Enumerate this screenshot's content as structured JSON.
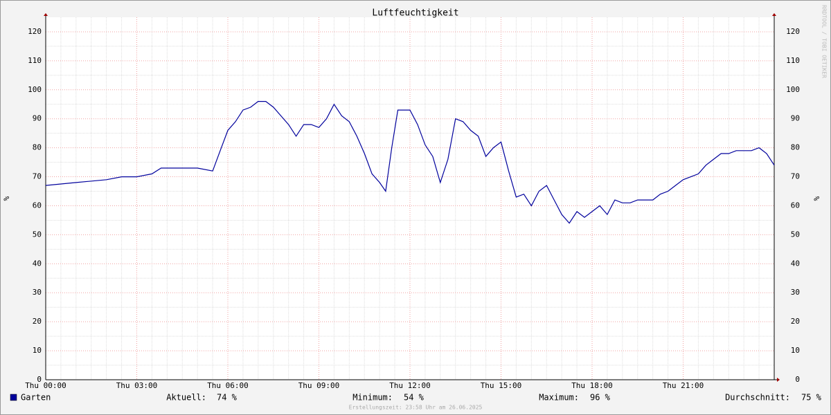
{
  "chart_data": {
    "type": "line",
    "title": "Luftfeuchtigkeit",
    "y_label": "%",
    "y2_label": "%",
    "watermark": "RRDTOOL / TOBI OETIKER",
    "xlim": [
      0,
      24
    ],
    "xticks": [
      {
        "value": 0,
        "label": "Thu 00:00"
      },
      {
        "value": 3,
        "label": "Thu 03:00"
      },
      {
        "value": 6,
        "label": "Thu 06:00"
      },
      {
        "value": 9,
        "label": "Thu 09:00"
      },
      {
        "value": 12,
        "label": "Thu 12:00"
      },
      {
        "value": 15,
        "label": "Thu 15:00"
      },
      {
        "value": 18,
        "label": "Thu 18:00"
      },
      {
        "value": 21,
        "label": "Thu 21:00"
      }
    ],
    "ylim": [
      0,
      125
    ],
    "yticks": [
      0,
      10,
      20,
      30,
      40,
      50,
      60,
      70,
      80,
      90,
      100,
      110,
      120
    ],
    "grid": true,
    "x": [
      0,
      1,
      2,
      2.5,
      3,
      3.5,
      3.8,
      4.5,
      5,
      5.5,
      5.75,
      6,
      6.25,
      6.5,
      6.75,
      7,
      7.25,
      7.5,
      7.75,
      8,
      8.25,
      8.5,
      8.75,
      9,
      9.25,
      9.5,
      9.75,
      10,
      10.25,
      10.5,
      10.75,
      11,
      11.2,
      11.4,
      11.6,
      12,
      12.25,
      12.5,
      12.75,
      13,
      13.25,
      13.5,
      13.75,
      14,
      14.25,
      14.5,
      14.75,
      15,
      15.25,
      15.5,
      15.75,
      16,
      16.25,
      16.5,
      16.75,
      17,
      17.25,
      17.5,
      17.75,
      18,
      18.25,
      18.5,
      18.75,
      19,
      19.25,
      19.5,
      20,
      20.25,
      20.5,
      20.75,
      21,
      21.5,
      21.75,
      22,
      22.25,
      22.5,
      22.75,
      23,
      23.25,
      23.5,
      23.75,
      24
    ],
    "series": [
      {
        "name": "Garten",
        "color": "#00009c",
        "values": [
          67,
          68,
          69,
          70,
          70,
          71,
          73,
          73,
          73,
          72,
          79,
          86,
          89,
          93,
          94,
          96,
          96,
          94,
          91,
          88,
          84,
          88,
          88,
          87,
          90,
          95,
          91,
          89,
          84,
          78,
          71,
          68,
          65,
          80,
          93,
          93,
          88,
          81,
          77,
          68,
          76,
          90,
          89,
          86,
          84,
          77,
          80,
          82,
          72,
          63,
          64,
          60,
          65,
          67,
          62,
          57,
          54,
          58,
          56,
          58,
          60,
          57,
          62,
          61,
          61,
          62,
          62,
          64,
          65,
          67,
          69,
          71,
          74,
          76,
          78,
          78,
          79,
          79,
          79,
          80,
          78,
          74
        ]
      }
    ],
    "legend_stats": [
      {
        "label": "Aktuell:",
        "text": "74 %"
      },
      {
        "label": "Minimum:",
        "text": "54 %"
      },
      {
        "label": "Maximum:",
        "text": "96 %"
      },
      {
        "label": "Durchschnitt:",
        "text": "75 %"
      }
    ],
    "footer": "Erstellungszeit: 23:58 Uhr am 26.06.2025"
  }
}
